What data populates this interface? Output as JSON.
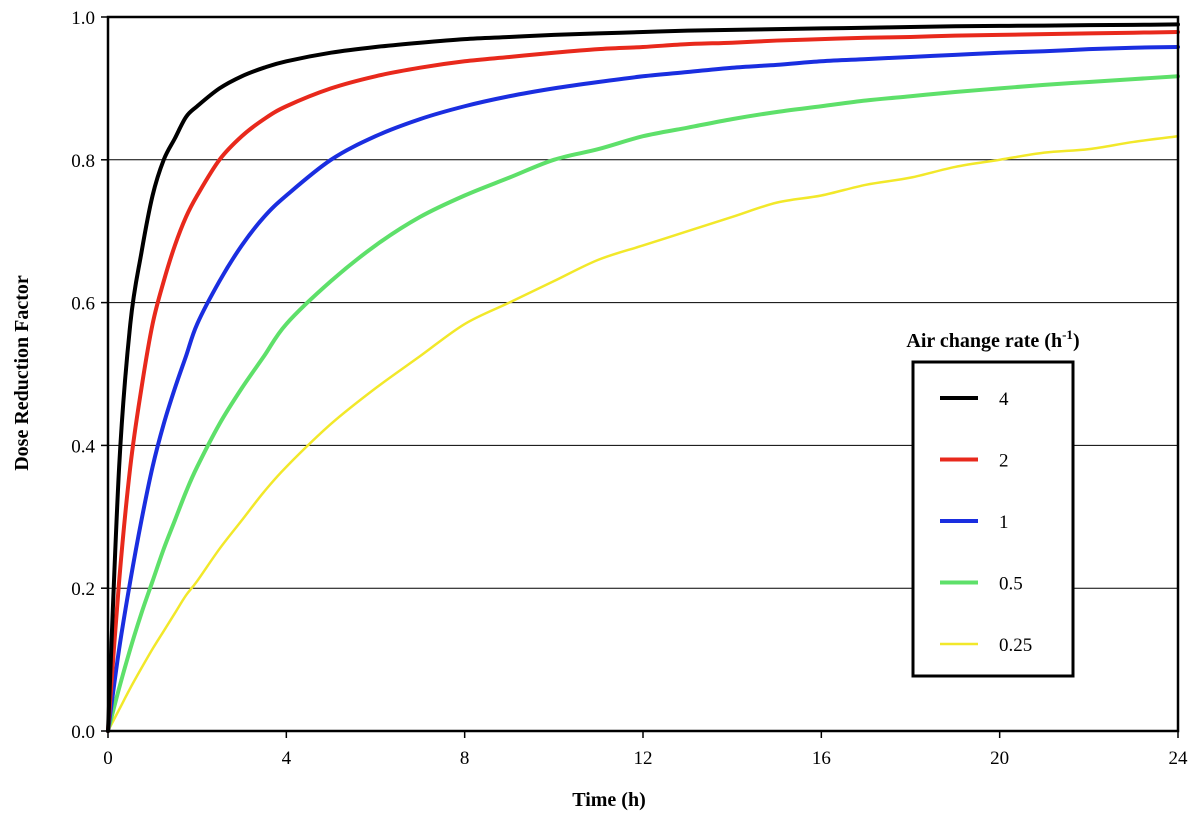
{
  "chart_data": {
    "type": "line",
    "title": "",
    "xlabel": "Time (h)",
    "ylabel": "Dose Reduction Factor",
    "xlim": [
      0,
      24
    ],
    "ylim": [
      0,
      1.0
    ],
    "x_ticks": [
      "0",
      "4",
      "8",
      "12",
      "16",
      "20",
      "24"
    ],
    "y_ticks": [
      "0.0",
      "0.2",
      "0.4",
      "0.6",
      "0.8",
      "1.0"
    ],
    "grid": "horizontal",
    "legend": {
      "title_prefix": "Air change rate (h",
      "title_sup": "-1",
      "title_suffix": ")",
      "placement": "center-right"
    },
    "x": [
      0,
      0.25,
      0.5,
      0.75,
      1,
      1.25,
      1.5,
      1.75,
      2,
      2.5,
      3,
      3.5,
      4,
      5,
      6,
      7,
      8,
      9,
      10,
      11,
      12,
      13,
      14,
      15,
      16,
      17,
      18,
      19,
      20,
      21,
      22,
      23,
      24
    ],
    "series": [
      {
        "name": "4",
        "color": "#000000",
        "values": [
          0.0,
          0.37,
          0.57,
          0.67,
          0.75,
          0.8,
          0.83,
          0.86,
          0.875,
          0.9,
          0.917,
          0.929,
          0.938,
          0.95,
          0.958,
          0.964,
          0.969,
          0.972,
          0.975,
          0.977,
          0.979,
          0.981,
          0.982,
          0.983,
          0.984,
          0.985,
          0.986,
          0.987,
          0.9875,
          0.988,
          0.9886,
          0.989,
          0.9896
        ]
      },
      {
        "name": "2",
        "color": "#e8291c",
        "values": [
          0.0,
          0.21,
          0.37,
          0.48,
          0.57,
          0.63,
          0.68,
          0.72,
          0.75,
          0.8,
          0.833,
          0.857,
          0.875,
          0.9,
          0.917,
          0.929,
          0.938,
          0.944,
          0.95,
          0.955,
          0.958,
          0.962,
          0.964,
          0.967,
          0.969,
          0.971,
          0.972,
          0.974,
          0.975,
          0.976,
          0.977,
          0.978,
          0.979
        ]
      },
      {
        "name": "1",
        "color": "#1a2ee0",
        "values": [
          0.0,
          0.115,
          0.21,
          0.295,
          0.37,
          0.43,
          0.48,
          0.525,
          0.57,
          0.63,
          0.68,
          0.72,
          0.75,
          0.8,
          0.833,
          0.857,
          0.875,
          0.889,
          0.9,
          0.909,
          0.917,
          0.923,
          0.929,
          0.933,
          0.938,
          0.941,
          0.944,
          0.947,
          0.95,
          0.952,
          0.955,
          0.957,
          0.958
        ]
      },
      {
        "name": "0.5",
        "color": "#5ee06a",
        "values": [
          0.0,
          0.06,
          0.115,
          0.165,
          0.21,
          0.255,
          0.295,
          0.335,
          0.37,
          0.43,
          0.48,
          0.525,
          0.57,
          0.63,
          0.68,
          0.72,
          0.75,
          0.775,
          0.8,
          0.815,
          0.833,
          0.845,
          0.857,
          0.867,
          0.875,
          0.883,
          0.889,
          0.895,
          0.9,
          0.905,
          0.909,
          0.913,
          0.917
        ]
      },
      {
        "name": "0.25",
        "color": "#f2e82a",
        "values": [
          0.0,
          0.03,
          0.06,
          0.088,
          0.115,
          0.14,
          0.165,
          0.19,
          0.21,
          0.255,
          0.295,
          0.335,
          0.37,
          0.43,
          0.48,
          0.525,
          0.57,
          0.6,
          0.63,
          0.66,
          0.68,
          0.7,
          0.72,
          0.74,
          0.75,
          0.765,
          0.775,
          0.79,
          0.8,
          0.81,
          0.815,
          0.825,
          0.833
        ]
      }
    ]
  }
}
